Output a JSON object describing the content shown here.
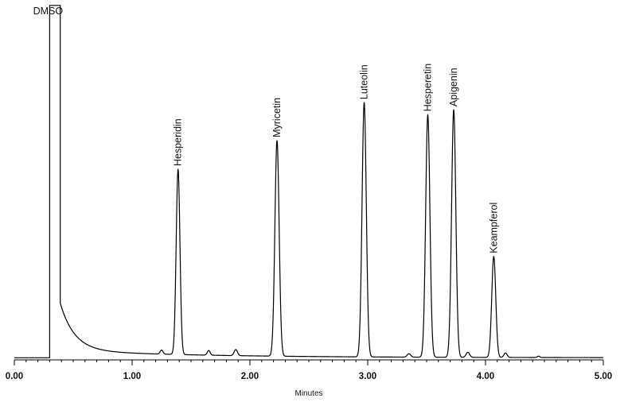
{
  "chart_data": {
    "type": "line",
    "title": "",
    "xlabel": "Minutes",
    "ylabel": "",
    "xlim": [
      0,
      5
    ],
    "ylim": [
      0,
      100
    ],
    "x_ticks": [
      "0.00",
      "1.00",
      "2.00",
      "3.00",
      "4.00",
      "5.00"
    ],
    "grid": false,
    "series": [
      {
        "baseline": 0.4,
        "solvent_front": {
          "start": 0.3,
          "end": 0.39,
          "height": 100
        },
        "tail_amplitude": 14,
        "tail_decay": 0.12,
        "minor_peaks": [
          {
            "x": 1.25,
            "height": 1.2,
            "width": 0.012
          },
          {
            "x": 1.65,
            "height": 1.4,
            "width": 0.012
          },
          {
            "x": 1.88,
            "height": 1.8,
            "width": 0.014
          },
          {
            "x": 3.35,
            "height": 1.0,
            "width": 0.015
          },
          {
            "x": 3.85,
            "height": 1.5,
            "width": 0.015
          },
          {
            "x": 4.17,
            "height": 1.3,
            "width": 0.014
          },
          {
            "x": 4.45,
            "height": 0.4,
            "width": 0.01
          }
        ]
      }
    ],
    "peaks": [
      {
        "label": "DMSO",
        "x": 0.34,
        "height": 100
      },
      {
        "label": "Hesperidin",
        "x": 1.39,
        "height": 55,
        "width": 0.016
      },
      {
        "label": "Myricetin",
        "x": 2.23,
        "height": 64,
        "width": 0.018
      },
      {
        "label": "Luteolin",
        "x": 2.97,
        "height": 75.5,
        "width": 0.018
      },
      {
        "label": "Hesperetin",
        "x": 3.51,
        "height": 72,
        "width": 0.018
      },
      {
        "label": "Apigenin",
        "x": 3.73,
        "height": 73.5,
        "width": 0.018
      },
      {
        "label": "Keampferol",
        "x": 4.07,
        "height": 30,
        "width": 0.017
      }
    ]
  }
}
